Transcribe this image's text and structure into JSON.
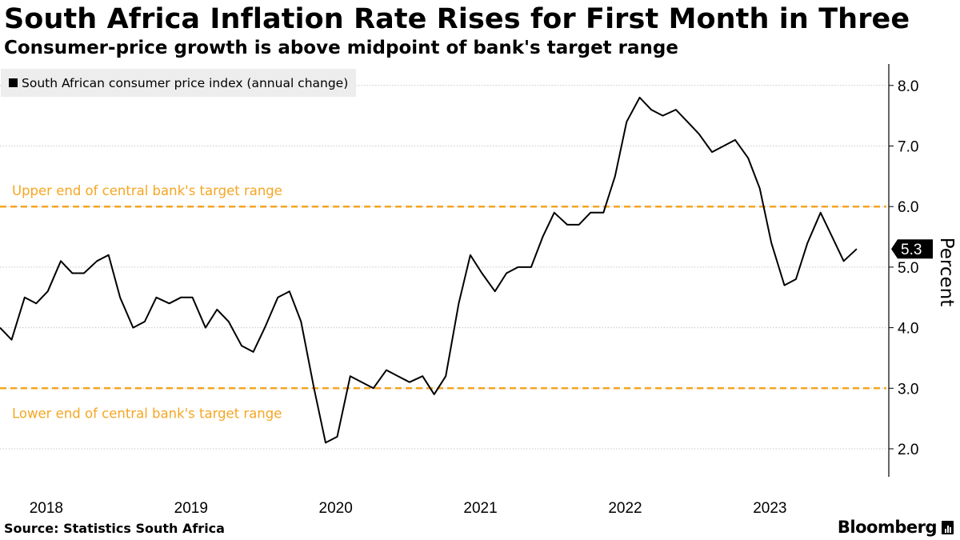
{
  "title": "South Africa Inflation Rate Rises for First Month in Three",
  "subtitle": "Consumer-price growth is above midpoint of bank's target range",
  "legend": {
    "label": "South African consumer price index (annual change)"
  },
  "source": "Source: Statistics South Africa",
  "brand": "Bloomberg",
  "colors": {
    "line": "#000000",
    "target": "#f5a623",
    "grid": "#c8c8c8",
    "axis": "#000000"
  },
  "chart_data": {
    "type": "line",
    "title": "South Africa Inflation Rate Rises for First Month in Three",
    "ylabel": "Percent",
    "ylim": [
      1.5,
      8.3
    ],
    "yticks": [
      2.0,
      3.0,
      4.0,
      5.0,
      6.0,
      7.0,
      8.0
    ],
    "ytick_labels": [
      "2.0",
      "3.0",
      "4.0",
      "5.0",
      "6.0",
      "7.0",
      "8.0"
    ],
    "xlim": [
      2017.7,
      2023.72
    ],
    "xtick_labels": [
      "2018",
      "2019",
      "2020",
      "2021",
      "2022",
      "2023"
    ],
    "last_value_label": "5.3",
    "reference_lines": [
      {
        "value": 6.0,
        "label": "Upper end of central bank's target range"
      },
      {
        "value": 3.0,
        "label": "Lower end of central bank's target range"
      }
    ],
    "series": [
      {
        "name": "South African consumer price index (annual change)",
        "x": [
          2017.7,
          2017.78,
          2017.87,
          2017.95,
          2018.03,
          2018.12,
          2018.2,
          2018.28,
          2018.37,
          2018.45,
          2018.53,
          2018.62,
          2018.7,
          2018.78,
          2018.87,
          2018.95,
          2019.03,
          2019.12,
          2019.2,
          2019.28,
          2019.37,
          2019.45,
          2019.53,
          2019.62,
          2019.7,
          2019.78,
          2019.87,
          2019.95,
          2020.03,
          2020.12,
          2020.2,
          2020.28,
          2020.37,
          2020.45,
          2020.53,
          2020.62,
          2020.7,
          2020.78,
          2020.87,
          2020.95,
          2021.03,
          2021.12,
          2021.2,
          2021.28,
          2021.37,
          2021.45,
          2021.53,
          2021.62,
          2021.7,
          2021.78,
          2021.87,
          2021.95,
          2022.03,
          2022.12,
          2022.2,
          2022.28,
          2022.37,
          2022.45,
          2022.53,
          2022.62,
          2022.7,
          2022.78,
          2022.87,
          2022.95,
          2023.03,
          2023.12,
          2023.2,
          2023.28,
          2023.37,
          2023.45,
          2023.53,
          2023.62
        ],
        "values": [
          4.0,
          3.8,
          4.5,
          4.4,
          4.6,
          5.1,
          4.9,
          4.9,
          5.1,
          5.2,
          4.5,
          4.0,
          4.1,
          4.5,
          4.4,
          4.5,
          4.5,
          4.0,
          4.3,
          4.1,
          3.7,
          3.6,
          4.0,
          4.5,
          4.6,
          4.1,
          3.0,
          2.1,
          2.2,
          3.2,
          3.1,
          3.0,
          3.3,
          3.2,
          3.1,
          3.2,
          2.9,
          3.2,
          4.4,
          5.2,
          4.9,
          4.6,
          4.9,
          5.0,
          5.0,
          5.5,
          5.9,
          5.7,
          5.7,
          5.9,
          5.9,
          6.5,
          7.4,
          7.8,
          7.6,
          7.5,
          7.6,
          7.4,
          7.2,
          6.9,
          7.0,
          7.1,
          6.8,
          6.3,
          5.4,
          4.7,
          4.8,
          5.4,
          5.9,
          5.5,
          5.1,
          5.3
        ]
      }
    ]
  }
}
